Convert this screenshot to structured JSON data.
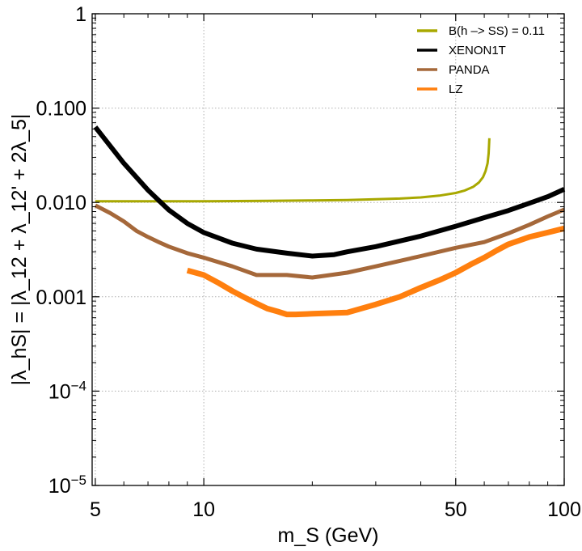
{
  "chart_data": {
    "type": "line",
    "xlabel": "m_S (GeV)",
    "ylabel": "|λ_hS| = |λ_12 + λ_12' + 2λ_5|",
    "x_scale": "log",
    "y_scale": "log",
    "xlim": [
      4.9,
      100
    ],
    "ylim": [
      1e-05,
      1
    ],
    "grid": true,
    "legend_position": "top-right",
    "x_ticks": [
      {
        "value": 5,
        "label": "5"
      },
      {
        "value": 10,
        "label": "10"
      },
      {
        "value": 50,
        "label": "50"
      },
      {
        "value": 100,
        "label": "100"
      }
    ],
    "y_ticks": [
      {
        "value": 1e-05,
        "label": "10",
        "exp": "−5"
      },
      {
        "value": 0.0001,
        "label": "10",
        "exp": "−4"
      },
      {
        "value": 0.001,
        "label": "0.001",
        "exp": ""
      },
      {
        "value": 0.01,
        "label": "0.010",
        "exp": ""
      },
      {
        "value": 0.1,
        "label": "0.100",
        "exp": ""
      },
      {
        "value": 1,
        "label": "1",
        "exp": ""
      }
    ],
    "series": [
      {
        "name": "B(h –> SS) = 0.11",
        "color": "#a8a800",
        "width": 3,
        "x": [
          5,
          7,
          10,
          15,
          20,
          25,
          30,
          35,
          40,
          45,
          50,
          53,
          56,
          58,
          59.5,
          60.5,
          61.3,
          61.7,
          62.0
        ],
        "y": [
          0.0103,
          0.0103,
          0.0103,
          0.0104,
          0.0105,
          0.0106,
          0.0108,
          0.011,
          0.0113,
          0.0118,
          0.0126,
          0.0134,
          0.0147,
          0.0163,
          0.0185,
          0.0215,
          0.026,
          0.033,
          0.048
        ]
      },
      {
        "name": "XENON1T",
        "color": "#000000",
        "width": 6,
        "x": [
          5,
          6,
          7,
          8,
          9,
          10,
          12,
          14,
          17,
          20,
          23,
          25,
          30,
          40,
          50,
          60,
          70,
          80,
          90,
          100
        ],
        "y": [
          0.063,
          0.026,
          0.0135,
          0.0083,
          0.006,
          0.0048,
          0.0037,
          0.0032,
          0.0029,
          0.0027,
          0.0028,
          0.003,
          0.0034,
          0.0044,
          0.0056,
          0.0069,
          0.0082,
          0.0098,
          0.0115,
          0.0138
        ]
      },
      {
        "name": "PANDA",
        "color": "#a5683a",
        "width": 5,
        "x": [
          5,
          5.5,
          6,
          6.5,
          7,
          7.5,
          8,
          9,
          10,
          12,
          14,
          17,
          20,
          25,
          30,
          40,
          50,
          60,
          70,
          80,
          90,
          100
        ],
        "y": [
          0.0093,
          0.0077,
          0.0063,
          0.005,
          0.0043,
          0.0038,
          0.0034,
          0.0029,
          0.0026,
          0.0021,
          0.0017,
          0.0017,
          0.0016,
          0.0018,
          0.0021,
          0.0027,
          0.0033,
          0.0038,
          0.0047,
          0.0058,
          0.0071,
          0.0084
        ]
      },
      {
        "name": "LZ",
        "color": "#ff7f0e",
        "width": 7,
        "x": [
          9,
          10,
          11,
          12,
          13,
          14,
          15,
          16,
          17,
          18,
          20,
          22,
          25,
          30,
          35,
          40,
          45,
          50,
          55,
          60,
          65,
          70,
          80,
          90,
          100
        ],
        "y": [
          0.0019,
          0.0017,
          0.0014,
          0.00115,
          0.00098,
          0.00085,
          0.00075,
          0.0007,
          0.00065,
          0.00065,
          0.00066,
          0.00067,
          0.00068,
          0.00083,
          0.001,
          0.00125,
          0.0015,
          0.0018,
          0.0022,
          0.0026,
          0.0031,
          0.0036,
          0.0043,
          0.0048,
          0.0053
        ]
      }
    ]
  }
}
